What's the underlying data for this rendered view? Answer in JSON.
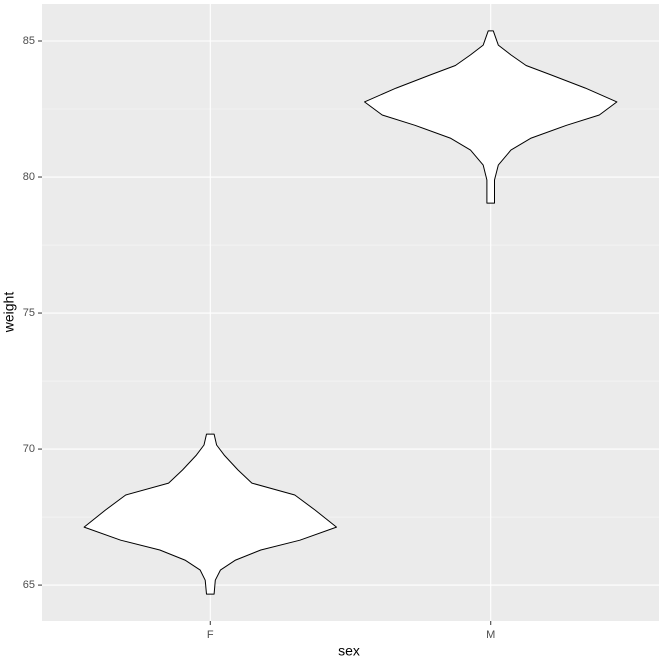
{
  "chart_data": {
    "type": "violin",
    "x_label": "sex",
    "y_label": "weight",
    "categories": [
      "F",
      "M"
    ],
    "violins": [
      {
        "y": [
          70.55,
          70.15,
          69.78,
          69.23,
          68.75,
          68.31,
          67.76,
          67.13,
          66.65,
          66.29,
          65.92,
          65.55,
          65.18,
          64.67
        ],
        "width": [
          0.03,
          0.05,
          0.11,
          0.22,
          0.33,
          0.67,
          0.83,
          1,
          0.71,
          0.4,
          0.2,
          0.08,
          0.04,
          0.03
        ]
      },
      {
        "y": [
          85.37,
          84.85,
          84.49,
          84.1,
          83.75,
          83.27,
          82.76,
          82.28,
          81.9,
          81.43,
          80.99,
          80.44,
          79.89,
          79.04
        ],
        "width": [
          0.02,
          0.06,
          0.16,
          0.28,
          0.48,
          0.75,
          1,
          0.86,
          0.6,
          0.32,
          0.16,
          0.06,
          0.03,
          0.03
        ]
      }
    ],
    "color": "#ffffff",
    "line_color": "#000000",
    "ylim": [
      63.68,
      86.36
    ],
    "yticks": [
      65,
      70,
      75,
      80,
      85
    ],
    "minor_yticks": [
      67.5,
      72.5,
      77.5,
      82.5
    ],
    "grid": true
  }
}
